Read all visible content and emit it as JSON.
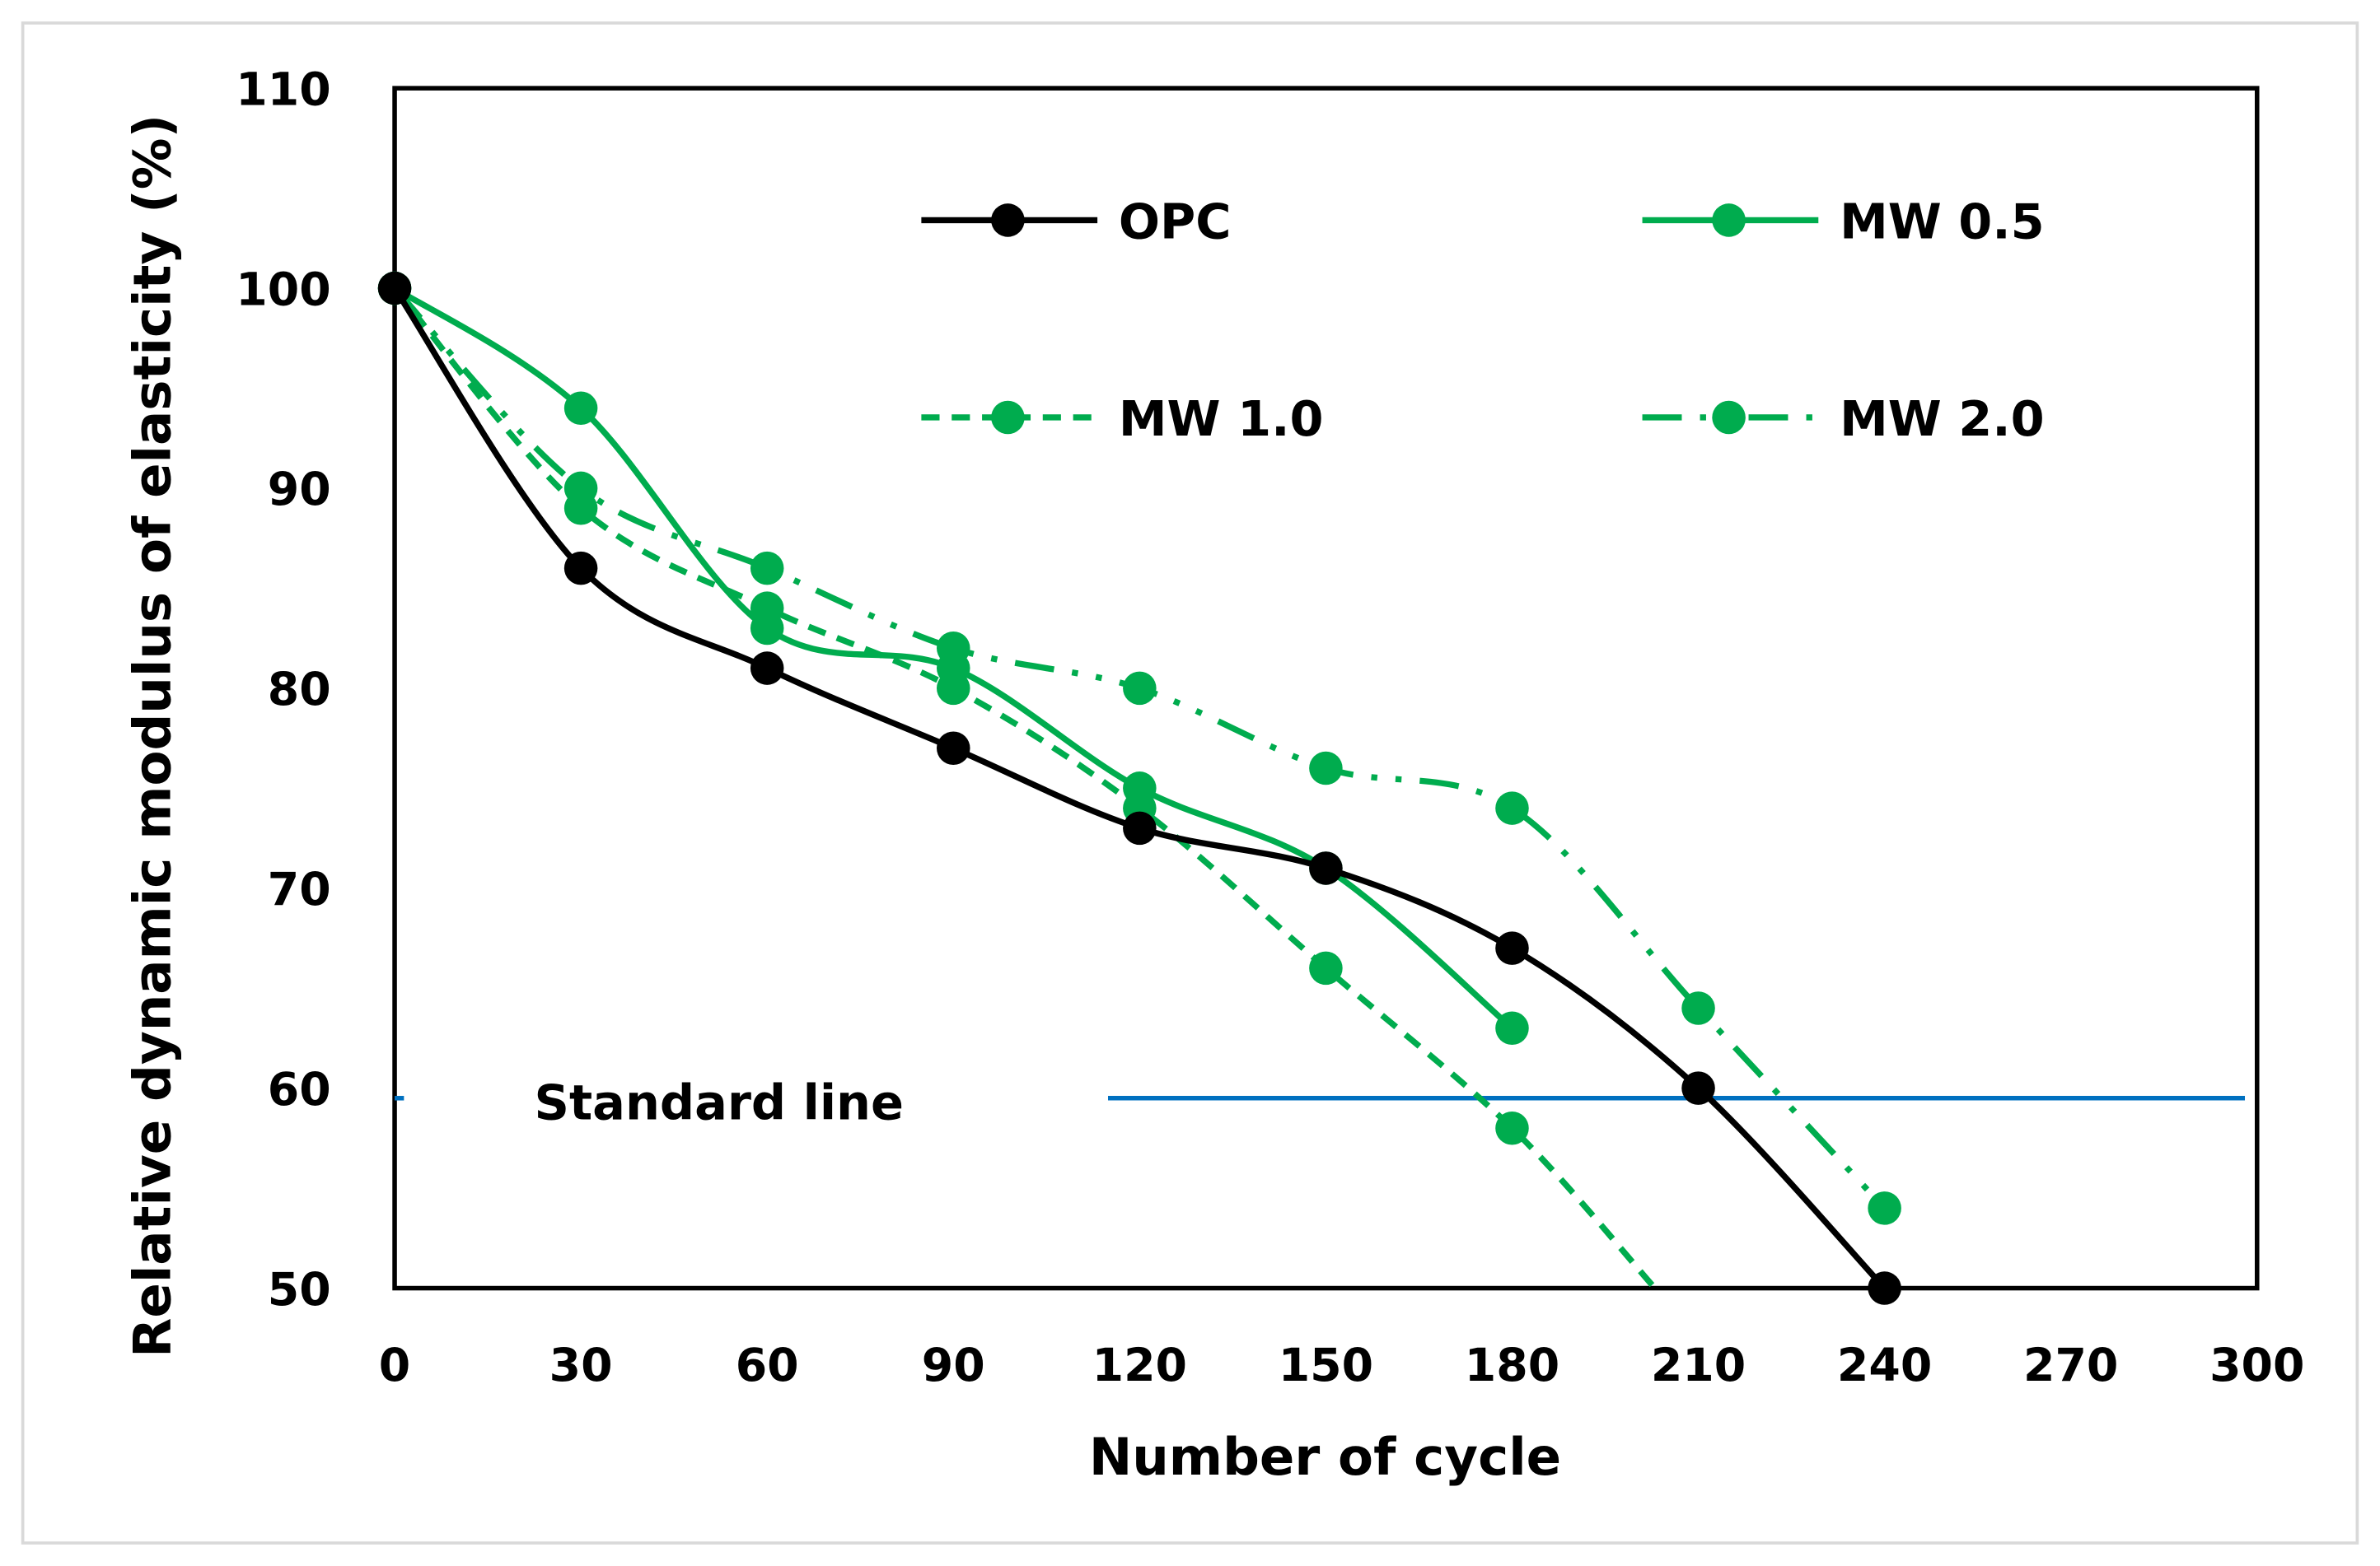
{
  "chart_data": {
    "type": "line",
    "title": "",
    "xlabel": "Number of cycle",
    "ylabel": "Relative dynamic modulus of elasticity (%)",
    "xlim": [
      0,
      300
    ],
    "ylim": [
      50,
      110
    ],
    "xticks": [
      "0",
      "30",
      "60",
      "90",
      "120",
      "150",
      "180",
      "210",
      "240",
      "270",
      "300"
    ],
    "yticks": [
      "50",
      "60",
      "70",
      "80",
      "90",
      "100",
      "110"
    ],
    "grid": false,
    "legend_position": "top",
    "series": [
      {
        "name": "OPC",
        "color": "#000000",
        "dash": "solid",
        "x": [
          0,
          30,
          60,
          90,
          120,
          150,
          180,
          210,
          240
        ],
        "y": [
          100,
          86,
          81,
          77,
          73,
          71,
          67,
          60,
          50
        ]
      },
      {
        "name": "MW 0.5",
        "color": "#00AC4E",
        "dash": "solid",
        "x": [
          0,
          30,
          60,
          90,
          120,
          150,
          180
        ],
        "y": [
          100,
          94,
          83,
          81,
          75,
          71,
          63
        ]
      },
      {
        "name": "MW 1.0",
        "color": "#00AC4E",
        "dash": "dash",
        "x": [
          0,
          30,
          60,
          90,
          120,
          150,
          180
        ],
        "y": [
          100,
          89,
          84,
          80,
          74,
          66,
          58
        ],
        "trend_end": [
          203,
          50
        ]
      },
      {
        "name": "MW 2.0",
        "color": "#00AC4E",
        "dash": "dashdotdot",
        "x": [
          0,
          30,
          60,
          90,
          120,
          150,
          180,
          210,
          240
        ],
        "y": [
          100,
          90,
          86,
          82,
          80,
          76,
          74,
          64,
          54
        ]
      }
    ],
    "reference_line": {
      "label": "Standard line",
      "y": 59.5,
      "color": "#0070C0"
    }
  }
}
